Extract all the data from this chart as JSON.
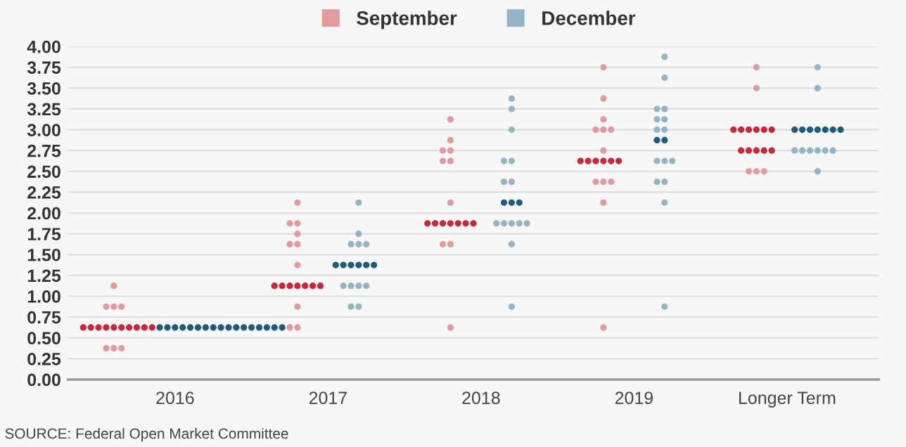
{
  "chart_data": {
    "type": "scatter",
    "xlim": [
      2015.3,
      2020.6
    ],
    "xticks": [
      2016,
      2017,
      2018,
      2019,
      {
        "value": 2020,
        "label": "Longer Term"
      }
    ],
    "ylim": [
      0,
      4.0
    ],
    "yticks": [
      {
        "value": 0,
        "label": "0.00"
      },
      {
        "value": 0.25,
        "label": "0.25"
      },
      {
        "value": 0.5,
        "label": "0.50"
      },
      {
        "value": 0.75,
        "label": "0.75"
      },
      {
        "value": 1.0,
        "label": "1.00"
      },
      {
        "value": 1.25,
        "label": "1.25"
      },
      {
        "value": 1.5,
        "label": "1.50"
      },
      {
        "value": 1.75,
        "label": "1.75"
      },
      {
        "value": 2.0,
        "label": "2.00"
      },
      {
        "value": 2.25,
        "label": "2.25"
      },
      {
        "value": 2.5,
        "label": "2.50"
      },
      {
        "value": 2.75,
        "label": "2.75"
      },
      {
        "value": 3.0,
        "label": "3.00"
      },
      {
        "value": 3.25,
        "label": "3.25"
      },
      {
        "value": 3.5,
        "label": "3.50"
      },
      {
        "value": 3.75,
        "label": "3.75"
      },
      {
        "value": 4.0,
        "label": "4.00"
      }
    ],
    "grid": "y",
    "legend": "top",
    "marker": "circle",
    "annotations": [
      "SOURCE: Federal Open Market Committee"
    ],
    "series": [
      {
        "name": "September",
        "color": "#e39a9f",
        "x": [
          2015.6,
          2015.55,
          2015.6,
          2015.65,
          2015.4,
          2015.45,
          2015.5,
          2015.55,
          2015.6,
          2015.65,
          2015.7,
          2015.75,
          2015.8,
          2015.85,
          2015.55,
          2015.6,
          2015.65,
          2016.8,
          2016.75,
          2016.8,
          2016.8,
          2016.75,
          2016.8,
          2016.8,
          2016.65,
          2016.7,
          2016.75,
          2016.8,
          2016.85,
          2016.9,
          2016.95,
          2016.8,
          2016.75,
          2016.8,
          2017.8,
          2017.8,
          2017.75,
          2017.8,
          2017.75,
          2017.8,
          2017.8,
          2017.65,
          2017.7,
          2017.75,
          2017.8,
          2017.85,
          2017.9,
          2017.95,
          2017.75,
          2017.8,
          2017.8,
          2018.8,
          2018.8,
          2018.8,
          2018.75,
          2018.8,
          2018.85,
          2018.8,
          2018.65,
          2018.7,
          2018.75,
          2018.8,
          2018.85,
          2018.9,
          2018.75,
          2018.8,
          2018.85,
          2018.8,
          2018.8,
          2019.8,
          2019.8,
          2019.65,
          2019.7,
          2019.75,
          2019.8,
          2019.85,
          2019.9,
          2019.7,
          2019.75,
          2019.8,
          2019.85,
          2019.9,
          2019.75,
          2019.8,
          2019.85
        ],
        "values": [
          1.125,
          0.875,
          0.875,
          0.875,
          0.625,
          0.625,
          0.625,
          0.625,
          0.625,
          0.625,
          0.625,
          0.625,
          0.625,
          0.625,
          0.375,
          0.375,
          0.375,
          2.125,
          1.875,
          1.875,
          1.75,
          1.625,
          1.625,
          1.375,
          1.125,
          1.125,
          1.125,
          1.125,
          1.125,
          1.125,
          1.125,
          0.875,
          0.625,
          0.625,
          3.125,
          2.875,
          2.75,
          2.75,
          2.625,
          2.625,
          2.125,
          1.875,
          1.875,
          1.875,
          1.875,
          1.875,
          1.875,
          1.875,
          1.625,
          1.625,
          0.625,
          3.75,
          3.375,
          3.125,
          3.0,
          3.0,
          3.0,
          2.75,
          2.625,
          2.625,
          2.625,
          2.625,
          2.625,
          2.625,
          2.375,
          2.375,
          2.375,
          2.125,
          0.625,
          3.75,
          3.5,
          3.0,
          3.0,
          3.0,
          3.0,
          3.0,
          3.0,
          2.75,
          2.75,
          2.75,
          2.75,
          2.75,
          2.5,
          2.5,
          2.5
        ],
        "colors": [
          "#e39a9f",
          "#e39a9f",
          "#e39a9f",
          "#e39a9f",
          "#c7283a",
          "#c7283a",
          "#c7283a",
          "#c7283a",
          "#c7283a",
          "#c7283a",
          "#c7283a",
          "#c7283a",
          "#c7283a",
          "#c7283a",
          "#e39a9f",
          "#e39a9f",
          "#e39a9f",
          "#e39a9f",
          "#e39a9f",
          "#e39a9f",
          "#e39a9f",
          "#e39a9f",
          "#e39a9f",
          "#e39a9f",
          "#c7283a",
          "#c7283a",
          "#c7283a",
          "#c7283a",
          "#c7283a",
          "#c7283a",
          "#c7283a",
          "#e39a9f",
          "#e39a9f",
          "#e39a9f",
          "#e39a9f",
          "#e39a9f",
          "#e39a9f",
          "#e39a9f",
          "#e39a9f",
          "#e39a9f",
          "#e39a9f",
          "#c7283a",
          "#c7283a",
          "#c7283a",
          "#c7283a",
          "#c7283a",
          "#c7283a",
          "#c7283a",
          "#e39a9f",
          "#e39a9f",
          "#e39a9f",
          "#e39a9f",
          "#e39a9f",
          "#e39a9f",
          "#e39a9f",
          "#e39a9f",
          "#e39a9f",
          "#e39a9f",
          "#c7283a",
          "#c7283a",
          "#c7283a",
          "#c7283a",
          "#c7283a",
          "#c7283a",
          "#e39a9f",
          "#e39a9f",
          "#e39a9f",
          "#e39a9f",
          "#e39a9f",
          "#e39a9f",
          "#e39a9f",
          "#c7283a",
          "#c7283a",
          "#c7283a",
          "#c7283a",
          "#c7283a",
          "#c7283a",
          "#c7283a",
          "#c7283a",
          "#c7283a",
          "#c7283a",
          "#c7283a",
          "#e39a9f",
          "#e39a9f",
          "#e39a9f"
        ]
      },
      {
        "name": "December",
        "color": "#93b5c6",
        "x": [
          2015.9,
          2015.95,
          2016,
          2016.05,
          2016.1,
          2016.15,
          2016.2,
          2016.25,
          2016.3,
          2016.35,
          2016.4,
          2016.45,
          2016.5,
          2016.55,
          2016.6,
          2016.65,
          2016.7,
          2017.2,
          2017.2,
          2017.15,
          2017.2,
          2017.25,
          2017.05,
          2017.1,
          2017.15,
          2017.2,
          2017.25,
          2017.3,
          2017.1,
          2017.15,
          2017.2,
          2017.25,
          2017.15,
          2017.2,
          2018.2,
          2018.2,
          2018.2,
          2018.15,
          2018.2,
          2018.15,
          2018.2,
          2018.15,
          2018.2,
          2018.25,
          2018.1,
          2018.15,
          2018.2,
          2018.25,
          2018.3,
          2018.2,
          2018.2,
          2019.2,
          2019.2,
          2019.15,
          2019.2,
          2019.15,
          2019.2,
          2019.15,
          2019.2,
          2019.15,
          2019.2,
          2019.15,
          2019.2,
          2019.25,
          2019.15,
          2019.2,
          2019.2,
          2019.2,
          2020.2,
          2020.2,
          2020.05,
          2020.1,
          2020.15,
          2020.2,
          2020.25,
          2020.3,
          2020.35,
          2020.05,
          2020.1,
          2020.15,
          2020.2,
          2020.25,
          2020.3,
          2020.2
        ],
        "values": [
          0.625,
          0.625,
          0.625,
          0.625,
          0.625,
          0.625,
          0.625,
          0.625,
          0.625,
          0.625,
          0.625,
          0.625,
          0.625,
          0.625,
          0.625,
          0.625,
          0.625,
          2.125,
          1.75,
          1.625,
          1.625,
          1.625,
          1.375,
          1.375,
          1.375,
          1.375,
          1.375,
          1.375,
          1.125,
          1.125,
          1.125,
          1.125,
          0.875,
          0.875,
          3.375,
          3.25,
          3.0,
          2.625,
          2.625,
          2.375,
          2.375,
          2.125,
          2.125,
          2.125,
          1.875,
          1.875,
          1.875,
          1.875,
          1.875,
          1.625,
          0.875,
          3.875,
          3.625,
          3.25,
          3.25,
          3.125,
          3.125,
          3.0,
          3.0,
          2.875,
          2.875,
          2.625,
          2.625,
          2.625,
          2.375,
          2.375,
          2.125,
          0.875,
          3.75,
          3.5,
          3.0,
          3.0,
          3.0,
          3.0,
          3.0,
          3.0,
          3.0,
          2.75,
          2.75,
          2.75,
          2.75,
          2.75,
          2.75,
          2.5
        ],
        "colors": [
          "#1f5b7a",
          "#1f5b7a",
          "#1f5b7a",
          "#1f5b7a",
          "#1f5b7a",
          "#1f5b7a",
          "#1f5b7a",
          "#1f5b7a",
          "#1f5b7a",
          "#1f5b7a",
          "#1f5b7a",
          "#1f5b7a",
          "#1f5b7a",
          "#1f5b7a",
          "#1f5b7a",
          "#1f5b7a",
          "#1f5b7a",
          "#93b5c6",
          "#93b5c6",
          "#93b5c6",
          "#93b5c6",
          "#93b5c6",
          "#1f5b7a",
          "#1f5b7a",
          "#1f5b7a",
          "#1f5b7a",
          "#1f5b7a",
          "#1f5b7a",
          "#93b5c6",
          "#93b5c6",
          "#93b5c6",
          "#93b5c6",
          "#93b5c6",
          "#93b5c6",
          "#93b5c6",
          "#93b5c6",
          "#93b5c6",
          "#93b5c6",
          "#93b5c6",
          "#93b5c6",
          "#93b5c6",
          "#1f5b7a",
          "#1f5b7a",
          "#1f5b7a",
          "#93b5c6",
          "#93b5c6",
          "#93b5c6",
          "#93b5c6",
          "#93b5c6",
          "#93b5c6",
          "#93b5c6",
          "#93b5c6",
          "#93b5c6",
          "#93b5c6",
          "#93b5c6",
          "#93b5c6",
          "#93b5c6",
          "#93b5c6",
          "#93b5c6",
          "#1f5b7a",
          "#1f5b7a",
          "#93b5c6",
          "#93b5c6",
          "#93b5c6",
          "#93b5c6",
          "#93b5c6",
          "#93b5c6",
          "#93b5c6",
          "#93b5c6",
          "#93b5c6",
          "#1f5b7a",
          "#1f5b7a",
          "#1f5b7a",
          "#1f5b7a",
          "#1f5b7a",
          "#1f5b7a",
          "#1f5b7a",
          "#93b5c6",
          "#93b5c6",
          "#93b5c6",
          "#93b5c6",
          "#93b5c6",
          "#93b5c6",
          "#93b5c6"
        ]
      }
    ]
  }
}
